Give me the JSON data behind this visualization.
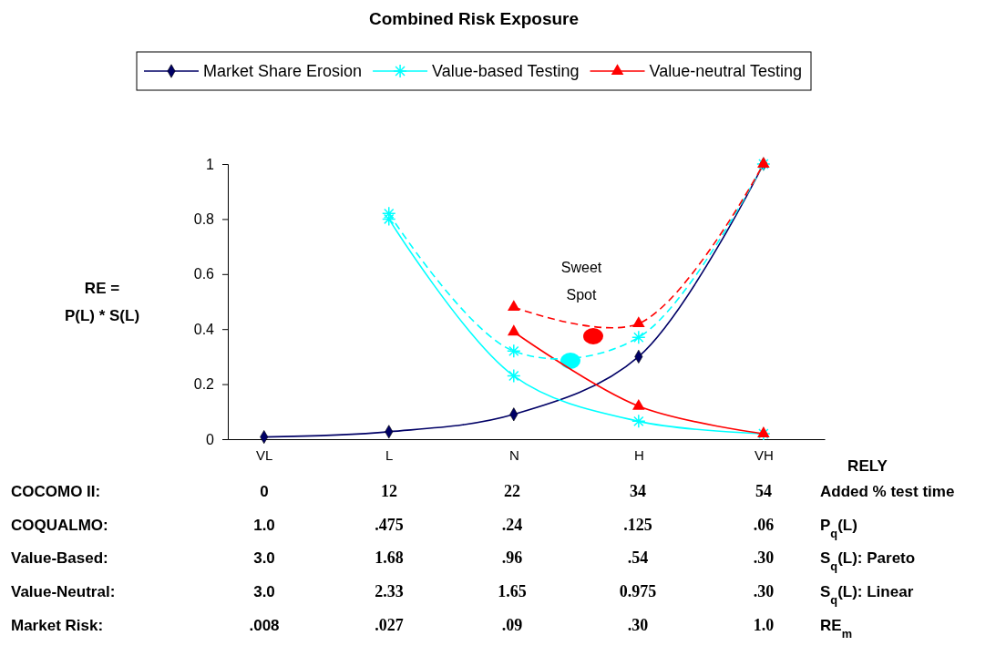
{
  "chart_data": {
    "type": "line",
    "title": "Combined Risk Exposure",
    "xlabel": "RELY",
    "ylabel": "RE =\nP(L) * S(L)",
    "categories": [
      "VL",
      "L",
      "N",
      "H",
      "VH"
    ],
    "ylim": [
      0,
      1
    ],
    "yticks": [
      0,
      0.2,
      0.4,
      0.6,
      0.8,
      1
    ],
    "legend": "top",
    "annotations": [
      "Sweet\nSpot",
      "COCOMO II:",
      "0",
      "12",
      "22",
      "34",
      "54",
      "Added % test time",
      "COQUALMO:",
      "1.0",
      ".475",
      ".24",
      ".125",
      ".06",
      "P$_{q}$(L)",
      "Value-Based:",
      "3.0",
      "1.68",
      ".96",
      ".54",
      ".30",
      "S$_{q}$(L): Pareto",
      "Value-Neutral:",
      "3.0",
      "2.33",
      "1.65",
      "0.975",
      ".30",
      "S$_{q}$(L): Linear",
      "Market Risk:",
      ".008",
      ".027",
      ".09",
      ".30",
      "1.0",
      "RE$_{m}$"
    ],
    "series": [
      {
        "name": "Market Share Erosion",
        "type": "line",
        "color": "#000066",
        "marker": "diamond",
        "line_style": "solid",
        "values": [
          0.008,
          0.027,
          0.09,
          0.3,
          1.0
        ]
      },
      {
        "name": "Value-based Testing",
        "type": "line",
        "color": "#00ffff",
        "marker": "cross",
        "line_style": "solid",
        "values": [
          null,
          0.8,
          0.23,
          0.065,
          0.02
        ]
      },
      {
        "name": "Value-neutral Testing",
        "type": "line",
        "color": "#ff0000",
        "marker": "triangle",
        "line_style": "solid",
        "values": [
          null,
          null,
          0.39,
          0.12,
          0.02
        ]
      },
      {
        "type": "line",
        "color": "#00ffff",
        "marker": "cross",
        "line_style": "dashed",
        "values": [
          null,
          0.82,
          0.32,
          0.37,
          1.0
        ]
      },
      {
        "type": "line",
        "color": "#ff0000",
        "marker": "triangle",
        "line_style": "dashed",
        "values": [
          null,
          null,
          0.48,
          0.42,
          1.0
        ]
      }
    ]
  }
}
